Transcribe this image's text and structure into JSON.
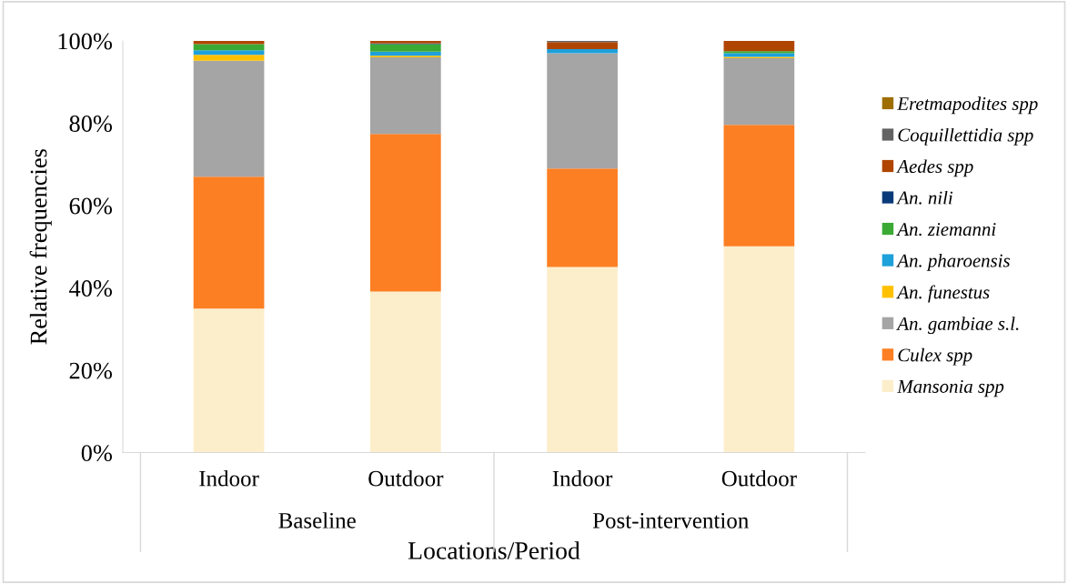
{
  "chart_data": {
    "type": "bar",
    "stacked": true,
    "xlabel": "Locations/Period",
    "ylabel": "Relative frequencies",
    "categories": [
      "Indoor",
      "Outdoor",
      "Indoor",
      "Outdoor"
    ],
    "annotations": [
      "Baseline",
      "Post-intervention"
    ],
    "ylim": [
      0,
      100
    ],
    "yticks": [
      {
        "value": 0,
        "label": "0%"
      },
      {
        "value": 20,
        "label": "20%"
      },
      {
        "value": 40,
        "label": "40%"
      },
      {
        "value": 60,
        "label": "60%"
      },
      {
        "value": 80,
        "label": "80%"
      },
      {
        "value": 100,
        "label": "100%"
      }
    ],
    "grid": false,
    "legend": "right",
    "series": [
      {
        "name": "Mansonia spp",
        "color": "#fdeecb",
        "values": [
          35.0,
          39.1,
          45.1,
          50.1
        ]
      },
      {
        "name": "Culex spp",
        "color": "#fd7f23",
        "values": [
          32.0,
          38.3,
          23.9,
          29.5
        ]
      },
      {
        "name": "An. gambiae s.l.",
        "color": "#a5a5a5",
        "values": [
          28.2,
          18.6,
          28.0,
          16.2
        ]
      },
      {
        "name": "An. funestus",
        "color": "#ffc000",
        "values": [
          1.4,
          0.4,
          0,
          0.3
        ]
      },
      {
        "name": "An. pharoensis",
        "color": "#1ea0db",
        "values": [
          1.1,
          1.0,
          1.0,
          0.9
        ]
      },
      {
        "name": "An. ziemanni",
        "color": "#3aaa35",
        "values": [
          1.5,
          1.8,
          0,
          0.5
        ]
      },
      {
        "name": "An. nili",
        "color": "#0b3a7a",
        "values": [
          0,
          0.2,
          0,
          0
        ]
      },
      {
        "name": "Aedes spp",
        "color": "#b04500",
        "values": [
          0.8,
          0.6,
          1.7,
          2.5
        ]
      },
      {
        "name": "Coquillettidia spp",
        "color": "#636363",
        "values": [
          0,
          0,
          0.3,
          0
        ]
      },
      {
        "name": "Eretmapodites spp",
        "color": "#9e6f00",
        "values": [
          0,
          0,
          0,
          0
        ]
      }
    ]
  }
}
